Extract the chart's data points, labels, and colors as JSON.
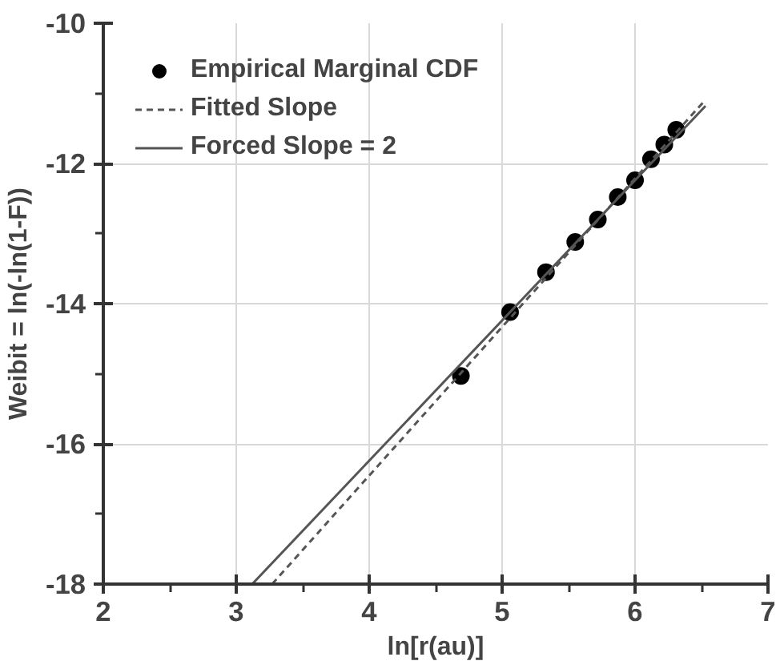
{
  "chart_data": {
    "type": "scatter",
    "xlabel": "ln[r(au)]",
    "ylabel": "Weibit = ln(-ln(1-F))",
    "xlim": [
      2,
      7
    ],
    "ylim": [
      -18,
      -10
    ],
    "xticks": [
      2,
      3,
      4,
      5,
      6,
      7
    ],
    "yticks": [
      -18,
      -16,
      -14,
      -12,
      -10
    ],
    "grid": true,
    "legend": "top left",
    "marker": "circle",
    "series": [
      {
        "name": "Empirical Marginal CDF",
        "color": "#000000",
        "x": [
          4.69,
          5.06,
          5.33,
          5.55,
          5.72,
          5.87,
          6.0,
          6.12,
          6.22,
          6.31
        ],
        "values": [
          -15.03,
          -14.12,
          -13.55,
          -13.12,
          -12.8,
          -12.48,
          -12.24,
          -11.94,
          -11.73,
          -11.52
        ]
      },
      {
        "name": "Fitted Slope",
        "type": "line",
        "line_style": "dashed",
        "marker": "none",
        "color": "#555555",
        "x": [
          3.27,
          6.53
        ],
        "values": [
          -18,
          -11.09
        ]
      },
      {
        "name": "Forced Slope = 2",
        "type": "line",
        "line_style": "solid",
        "marker": "none",
        "color": "#555555",
        "x": [
          3.12,
          6.53
        ],
        "values": [
          -18,
          -11.18
        ]
      }
    ]
  }
}
